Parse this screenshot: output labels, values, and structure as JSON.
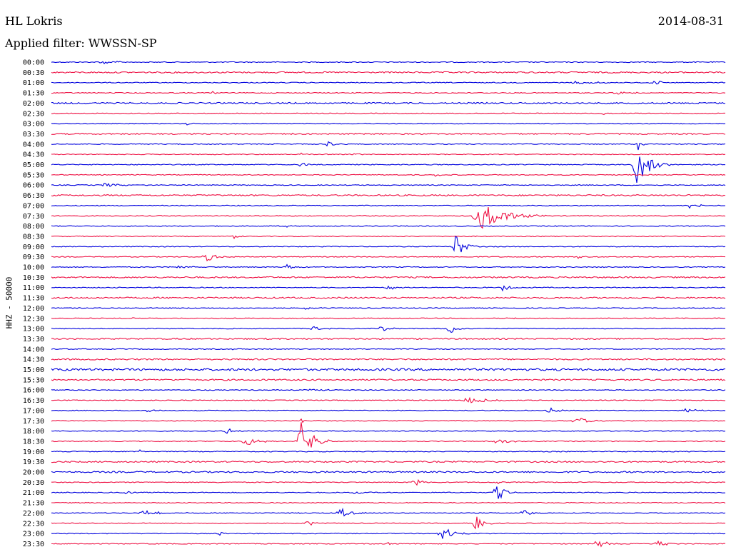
{
  "header": {
    "station": "HL Lokris",
    "date": "2014-08-31",
    "filter_label": "Applied filter: WWSSN-SP"
  },
  "chart_data": {
    "type": "line",
    "title": "HL Lokris",
    "subtitle": "Applied filter: WWSSN-SP",
    "ylabel": "HHZ - 50000",
    "xlabel": "",
    "colors": {
      "even_rows": "#0000dd",
      "odd_rows": "#ee1144"
    },
    "x_range_fraction": [
      0,
      1
    ],
    "grid": false,
    "traces": [
      {
        "time": "00:00",
        "events": [
          {
            "x": 0.08,
            "amp": 3,
            "dur": 0.04
          }
        ]
      },
      {
        "time": "00:30",
        "events": [],
        "noise": 2
      },
      {
        "time": "01:00",
        "events": [
          {
            "x": 0.89,
            "amp": 6,
            "dur": 0.02
          },
          {
            "x": 0.78,
            "amp": 2,
            "dur": 0.06
          }
        ]
      },
      {
        "time": "01:30",
        "events": [
          {
            "x": 0.24,
            "amp": 3,
            "dur": 0.01
          },
          {
            "x": 0.84,
            "amp": 3,
            "dur": 0.03
          }
        ]
      },
      {
        "time": "02:00",
        "events": [],
        "noise": 2
      },
      {
        "time": "02:30",
        "events": [
          {
            "x": 0.82,
            "amp": 2,
            "dur": 0.02
          }
        ]
      },
      {
        "time": "03:00",
        "events": [
          {
            "x": 0.2,
            "amp": 3,
            "dur": 0.01
          }
        ]
      },
      {
        "time": "03:30",
        "events": [],
        "noise": 2
      },
      {
        "time": "04:00",
        "events": [
          {
            "x": 0.41,
            "amp": 4,
            "dur": 0.02
          },
          {
            "x": 0.87,
            "amp": 60,
            "dur": 0.006
          }
        ]
      },
      {
        "time": "04:30",
        "events": [
          {
            "x": 0.37,
            "amp": 2,
            "dur": 0.01
          },
          {
            "x": 0.45,
            "amp": 2,
            "dur": 0.01
          }
        ]
      },
      {
        "time": "05:00",
        "events": [
          {
            "x": 0.87,
            "amp": 30,
            "dur": 0.03
          },
          {
            "x": 0.37,
            "amp": 3,
            "dur": 0.02
          }
        ]
      },
      {
        "time": "05:30",
        "events": [
          {
            "x": 0.57,
            "amp": 2,
            "dur": 0.02
          }
        ]
      },
      {
        "time": "06:00",
        "events": [
          {
            "x": 0.08,
            "amp": 3,
            "dur": 0.03
          }
        ]
      },
      {
        "time": "06:30",
        "events": [],
        "noise": 2
      },
      {
        "time": "07:00",
        "events": [
          {
            "x": 0.95,
            "amp": 8,
            "dur": 0.02
          }
        ]
      },
      {
        "time": "07:30",
        "events": [
          {
            "x": 0.64,
            "amp": 18,
            "dur": 0.06
          }
        ]
      },
      {
        "time": "08:00",
        "events": [
          {
            "x": 0.35,
            "amp": 3,
            "dur": 0.01
          }
        ]
      },
      {
        "time": "08:30",
        "events": [
          {
            "x": 0.27,
            "amp": 4,
            "dur": 0.01
          }
        ]
      },
      {
        "time": "09:00",
        "events": [
          {
            "x": 0.6,
            "amp": 20,
            "dur": 0.02
          }
        ]
      },
      {
        "time": "09:30",
        "events": [
          {
            "x": 0.23,
            "amp": 6,
            "dur": 0.03
          },
          {
            "x": 0.78,
            "amp": 4,
            "dur": 0.02
          }
        ]
      },
      {
        "time": "10:00",
        "events": [
          {
            "x": 0.19,
            "amp": 3,
            "dur": 0.02
          },
          {
            "x": 0.35,
            "amp": 4,
            "dur": 0.02
          }
        ]
      },
      {
        "time": "10:30",
        "events": [],
        "noise": 2
      },
      {
        "time": "11:00",
        "events": [
          {
            "x": 0.5,
            "amp": 4,
            "dur": 0.02
          },
          {
            "x": 0.67,
            "amp": 5,
            "dur": 0.02
          }
        ]
      },
      {
        "time": "11:30",
        "events": [],
        "noise": 2
      },
      {
        "time": "12:00",
        "events": [
          {
            "x": 0.38,
            "amp": 3,
            "dur": 0.02
          }
        ]
      },
      {
        "time": "12:30",
        "events": [
          {
            "x": 0.12,
            "amp": 2,
            "dur": 0.01
          },
          {
            "x": 0.68,
            "amp": 2,
            "dur": 0.02
          }
        ]
      },
      {
        "time": "13:00",
        "events": [
          {
            "x": 0.39,
            "amp": 4,
            "dur": 0.02
          },
          {
            "x": 0.49,
            "amp": 4,
            "dur": 0.02
          },
          {
            "x": 0.59,
            "amp": 9,
            "dur": 0.02
          }
        ]
      },
      {
        "time": "13:30",
        "events": [],
        "noise": 2
      },
      {
        "time": "14:00",
        "events": [
          {
            "x": 0.27,
            "amp": 2,
            "dur": 0.01
          }
        ]
      },
      {
        "time": "14:30",
        "events": [],
        "noise": 2
      },
      {
        "time": "15:00",
        "events": [],
        "noise": 3
      },
      {
        "time": "15:30",
        "events": [],
        "noise": 2
      },
      {
        "time": "16:00",
        "events": [
          {
            "x": 0.38,
            "amp": 2,
            "dur": 0.04
          }
        ]
      },
      {
        "time": "16:30",
        "events": [
          {
            "x": 0.62,
            "amp": 4,
            "dur": 0.05
          }
        ]
      },
      {
        "time": "17:00",
        "events": [
          {
            "x": 0.14,
            "amp": 3,
            "dur": 0.02
          },
          {
            "x": 0.74,
            "amp": 4,
            "dur": 0.02
          },
          {
            "x": 0.94,
            "amp": 5,
            "dur": 0.02
          }
        ]
      },
      {
        "time": "17:30",
        "events": [
          {
            "x": 0.37,
            "amp": 15,
            "dur": 0.003
          },
          {
            "x": 0.78,
            "amp": 6,
            "dur": 0.03
          }
        ]
      },
      {
        "time": "18:00",
        "events": [
          {
            "x": 0.26,
            "amp": 4,
            "dur": 0.02
          }
        ]
      },
      {
        "time": "18:30",
        "events": [
          {
            "x": 0.37,
            "amp": 30,
            "dur": 0.03
          },
          {
            "x": 0.29,
            "amp": 6,
            "dur": 0.03
          },
          {
            "x": 0.66,
            "amp": 4,
            "dur": 0.03
          }
        ]
      },
      {
        "time": "19:00",
        "events": [
          {
            "x": 0.13,
            "amp": 3,
            "dur": 0.01
          }
        ]
      },
      {
        "time": "19:30",
        "events": [],
        "noise": 2
      },
      {
        "time": "20:00",
        "events": [],
        "noise": 2
      },
      {
        "time": "20:30",
        "events": [
          {
            "x": 0.54,
            "amp": 5,
            "dur": 0.02
          },
          {
            "x": 0.66,
            "amp": 6,
            "dur": 0.006
          }
        ]
      },
      {
        "time": "21:00",
        "events": [
          {
            "x": 0.66,
            "amp": 14,
            "dur": 0.02
          },
          {
            "x": 0.11,
            "amp": 5,
            "dur": 0.01
          },
          {
            "x": 0.45,
            "amp": 3,
            "dur": 0.02
          }
        ]
      },
      {
        "time": "21:30",
        "events": [
          {
            "x": 0.34,
            "amp": 2,
            "dur": 0.01
          }
        ]
      },
      {
        "time": "22:00",
        "events": [
          {
            "x": 0.14,
            "amp": 4,
            "dur": 0.04
          },
          {
            "x": 0.43,
            "amp": 6,
            "dur": 0.03
          },
          {
            "x": 0.7,
            "amp": 6,
            "dur": 0.02
          }
        ]
      },
      {
        "time": "22:30",
        "events": [
          {
            "x": 0.38,
            "amp": 4,
            "dur": 0.02
          },
          {
            "x": 0.63,
            "amp": 10,
            "dur": 0.02
          }
        ]
      },
      {
        "time": "23:00",
        "events": [
          {
            "x": 0.58,
            "amp": 10,
            "dur": 0.03
          },
          {
            "x": 0.25,
            "amp": 3,
            "dur": 0.01
          }
        ]
      },
      {
        "time": "23:30",
        "events": [
          {
            "x": 0.81,
            "amp": 5,
            "dur": 0.03
          },
          {
            "x": 0.9,
            "amp": 5,
            "dur": 0.02
          },
          {
            "x": 0.5,
            "amp": 2,
            "dur": 0.02
          }
        ]
      }
    ]
  }
}
